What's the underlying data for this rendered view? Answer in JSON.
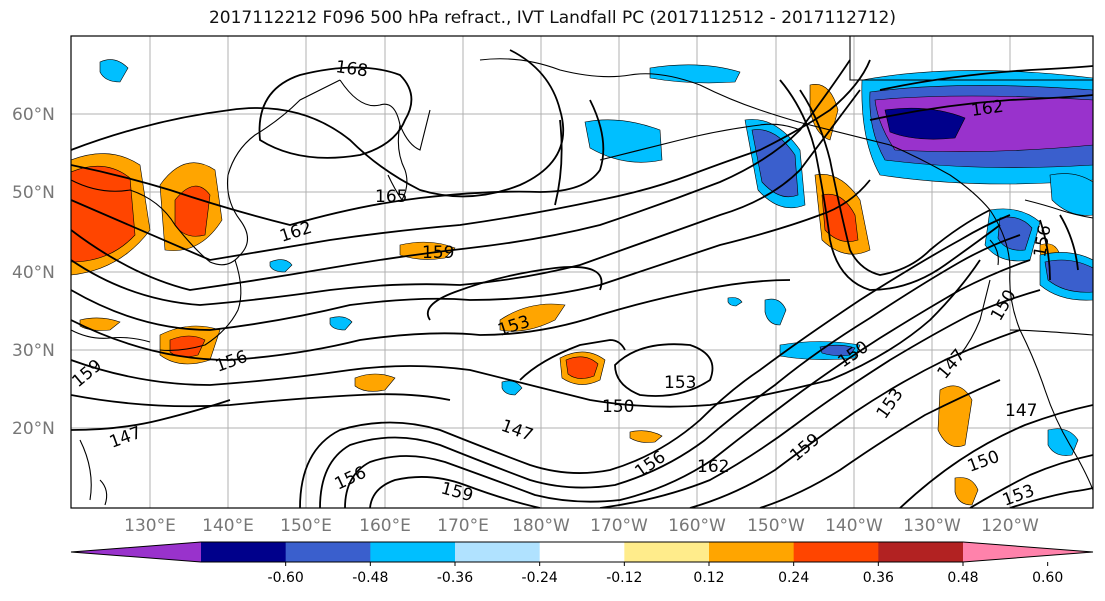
{
  "title": "2017112212 F096 500 hPa refract., IVT Landfall PC (2017112512 - 2017112712)",
  "map": {
    "lat_labels": [
      "60°N",
      "50°N",
      "40°N",
      "30°N",
      "20°N"
    ],
    "lon_labels": [
      "130°E",
      "140°E",
      "150°E",
      "160°E",
      "170°E",
      "180°W",
      "170°W",
      "160°W",
      "150°W",
      "140°W",
      "130°W",
      "120°W"
    ],
    "contour_labels": [
      "168",
      "165",
      "162",
      "159",
      "153",
      "159",
      "156",
      "153",
      "150",
      "147",
      "147",
      "156",
      "159",
      "156",
      "162",
      "159",
      "150",
      "147",
      "153",
      "150",
      "147",
      "150",
      "153",
      "162",
      "156"
    ]
  },
  "colorbar": {
    "colors": [
      "#9932cc",
      "#00008b",
      "#3a5fcd",
      "#00bfff",
      "#b0e2ff",
      "#ffffff",
      "#ffec8b",
      "#ffa500",
      "#ff4500",
      "#b22222",
      "#ff82ab"
    ],
    "tick_labels": [
      "-0.60",
      "-0.48",
      "-0.36",
      "-0.24",
      "-0.12",
      "0.12",
      "0.24",
      "0.36",
      "0.48",
      "0.60"
    ]
  }
}
